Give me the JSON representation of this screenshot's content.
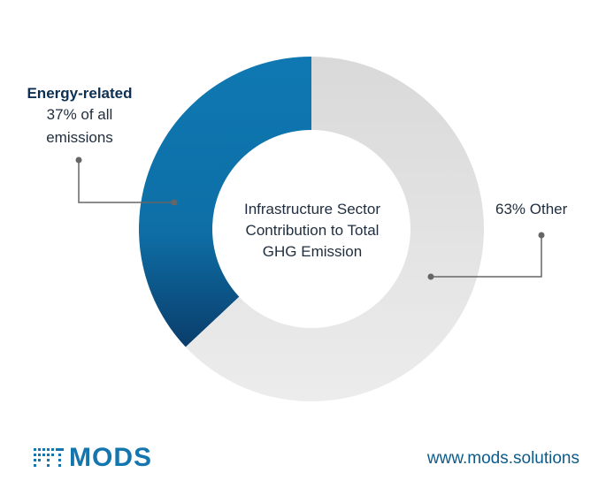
{
  "chart_data": {
    "type": "pie",
    "title": "Infrastructure Sector Contribution to Total GHG Emission",
    "title_lines": [
      "Infrastructure Sector",
      "Contribution to Total",
      "GHG Emission"
    ],
    "slices": [
      {
        "name": "Energy-related",
        "value": 37,
        "label_lines": [
          "Energy-related",
          "37% of all",
          "emissions"
        ],
        "color": "#0e6fa6"
      },
      {
        "name": "Other",
        "value": 63,
        "label": "63% Other",
        "color": "#e3e3e3"
      }
    ]
  },
  "footer": {
    "brand": "MODS",
    "url": "www.mods.solutions"
  },
  "colors": {
    "energy": "#0e6fa6",
    "energy_dark": "#0a3d6b",
    "other": "#e3e3e3",
    "brand": "#1476ae",
    "leader": "#666666"
  }
}
